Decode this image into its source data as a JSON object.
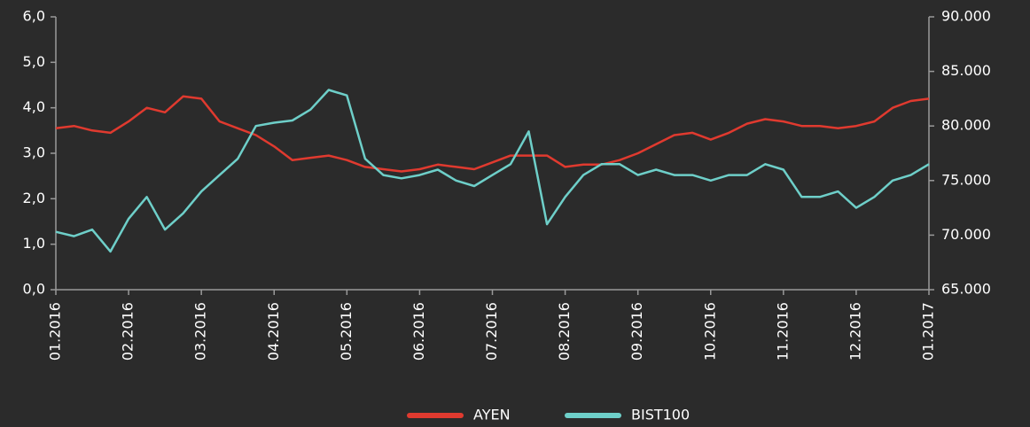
{
  "chart_data": {
    "type": "line",
    "categories": [
      "01.2016",
      null,
      null,
      null,
      "02.2016",
      null,
      null,
      null,
      "03.2016",
      null,
      null,
      null,
      "04.2016",
      null,
      null,
      null,
      "05.2016",
      null,
      null,
      null,
      "06.2016",
      null,
      null,
      null,
      "07.2016",
      null,
      null,
      null,
      "08.2016",
      null,
      null,
      null,
      "09.2016",
      null,
      null,
      null,
      "10.2016",
      null,
      null,
      null,
      "11.2016",
      null,
      null,
      null,
      "12.2016",
      null,
      null,
      null,
      "01.2017"
    ],
    "series": [
      {
        "name": "AYEN",
        "color": "#e03a2f",
        "axis": "y",
        "values": [
          3.55,
          3.6,
          3.5,
          3.45,
          3.7,
          4.0,
          3.9,
          4.25,
          4.2,
          3.7,
          3.55,
          3.4,
          3.15,
          2.85,
          2.9,
          2.95,
          2.85,
          2.7,
          2.65,
          2.6,
          2.65,
          2.75,
          2.7,
          2.65,
          2.8,
          2.95,
          2.95,
          2.95,
          2.7,
          2.75,
          2.75,
          2.85,
          3.0,
          3.2,
          3.4,
          3.45,
          3.3,
          3.45,
          3.65,
          3.75,
          3.7,
          3.6,
          3.6,
          3.55,
          3.6,
          3.7,
          4.0,
          4.15,
          4.2
        ]
      },
      {
        "name": "BIST100",
        "color": "#6ecfc9",
        "axis": "y2",
        "values": [
          70300,
          69900,
          70500,
          68500,
          71500,
          73500,
          70500,
          72000,
          74000,
          75500,
          77000,
          80000,
          80300,
          80500,
          81500,
          83300,
          82800,
          77000,
          75500,
          75200,
          75500,
          76000,
          75000,
          74500,
          75500,
          76500,
          79500,
          71000,
          73500,
          75500,
          76500,
          76500,
          75500,
          76000,
          75500,
          75500,
          75000,
          75500,
          75500,
          76500,
          76000,
          73500,
          73500,
          74000,
          72500,
          73500,
          75000,
          75500,
          76500
        ]
      }
    ],
    "ylim": [
      0,
      6
    ],
    "yticks": [
      {
        "value": 0,
        "label": "0,0"
      },
      {
        "value": 1,
        "label": "1,0"
      },
      {
        "value": 2,
        "label": "2,0"
      },
      {
        "value": 3,
        "label": "3,0"
      },
      {
        "value": 4,
        "label": "4,0"
      },
      {
        "value": 5,
        "label": "5,0"
      },
      {
        "value": 6,
        "label": "6,0"
      }
    ],
    "y2lim": [
      65000,
      90000
    ],
    "y2ticks": [
      {
        "value": 65000,
        "label": "65.000"
      },
      {
        "value": 70000,
        "label": "70.000"
      },
      {
        "value": 75000,
        "label": "75.000"
      },
      {
        "value": 80000,
        "label": "80.000"
      },
      {
        "value": 85000,
        "label": "85.000"
      },
      {
        "value": 90000,
        "label": "90.000"
      }
    ],
    "legend": "bottom"
  }
}
